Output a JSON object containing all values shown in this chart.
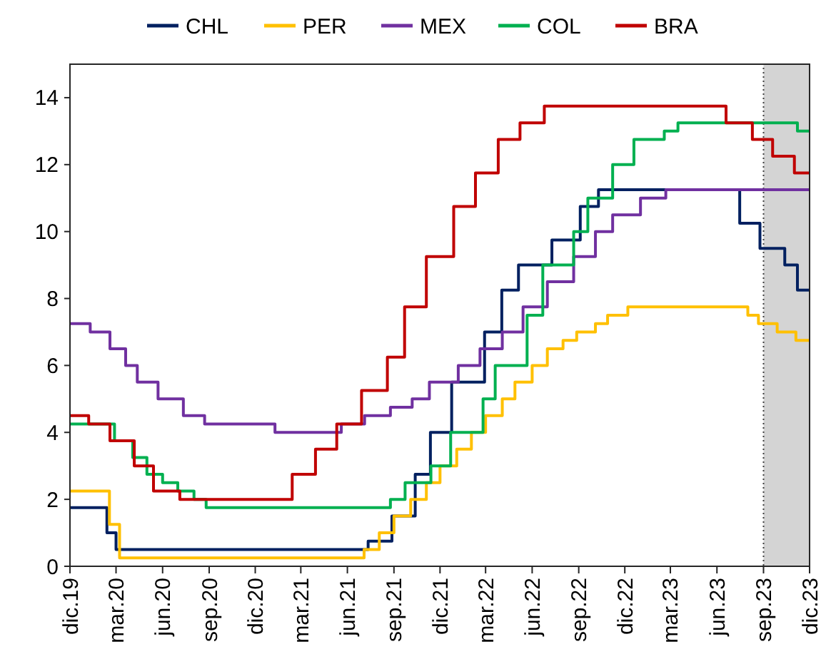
{
  "chart_data": {
    "type": "step",
    "legend": "top",
    "grid": false,
    "line_style": "solid",
    "marker": "none",
    "xlim": [
      "2019-12-01",
      "2023-12-01"
    ],
    "xticks": [
      {
        "value": "2019-12-01",
        "label": "dic.19"
      },
      {
        "value": "2020-03-01",
        "label": "mar.20"
      },
      {
        "value": "2020-06-01",
        "label": "jun.20"
      },
      {
        "value": "2020-09-01",
        "label": "sep.20"
      },
      {
        "value": "2020-12-01",
        "label": "dic.20"
      },
      {
        "value": "2021-03-01",
        "label": "mar.21"
      },
      {
        "value": "2021-06-01",
        "label": "jun.21"
      },
      {
        "value": "2021-09-01",
        "label": "sep.21"
      },
      {
        "value": "2021-12-01",
        "label": "dic.21"
      },
      {
        "value": "2022-03-01",
        "label": "mar.22"
      },
      {
        "value": "2022-06-01",
        "label": "jun.22"
      },
      {
        "value": "2022-09-01",
        "label": "sep.22"
      },
      {
        "value": "2022-12-01",
        "label": "dic.22"
      },
      {
        "value": "2023-03-01",
        "label": "mar.23"
      },
      {
        "value": "2023-06-01",
        "label": "jun.23"
      },
      {
        "value": "2023-09-01",
        "label": "sep.23"
      },
      {
        "value": "2023-12-01",
        "label": "dic.23"
      }
    ],
    "ylim": [
      0,
      15
    ],
    "yticks": [
      0,
      2,
      4,
      6,
      8,
      10,
      12,
      14
    ],
    "bands": [
      {
        "axis": "x",
        "from": "2023-09-01",
        "to": "2023-12-01",
        "color": "#d4d4d4"
      }
    ],
    "series": [
      {
        "name": "CHL",
        "color": "#002060",
        "x": [
          "2019-12-01",
          "2020-02-12",
          "2020-03-01",
          "2021-07-12",
          "2021-08-28",
          "2021-10-13",
          "2021-11-12",
          "2021-12-24",
          "2022-02-27",
          "2022-04-02",
          "2022-05-05",
          "2022-07-10",
          "2022-09-04",
          "2022-10-10",
          "2023-07-16",
          "2023-08-25",
          "2023-10-13",
          "2023-11-07",
          "2023-12-01"
        ],
        "values": [
          1.75,
          1.0,
          0.5,
          0.75,
          1.5,
          2.75,
          4.0,
          5.5,
          7.0,
          8.25,
          9.0,
          9.75,
          10.75,
          11.25,
          10.25,
          9.5,
          9.0,
          8.25,
          8.25
        ]
      },
      {
        "name": "PER",
        "color": "#ffc000",
        "x": [
          "2019-12-01",
          "2020-02-17",
          "2020-03-08",
          "2021-07-04",
          "2021-08-03",
          "2021-09-01",
          "2021-10-04",
          "2021-11-04",
          "2021-12-01",
          "2022-01-03",
          "2022-02-01",
          "2022-03-01",
          "2022-04-03",
          "2022-04-28",
          "2022-06-01",
          "2022-07-01",
          "2022-08-01",
          "2022-08-28",
          "2022-10-04",
          "2022-10-28",
          "2022-12-07",
          "2023-08-01",
          "2023-08-22",
          "2023-09-28",
          "2023-11-04",
          "2023-12-01"
        ],
        "values": [
          2.25,
          1.25,
          0.25,
          0.5,
          1.0,
          1.5,
          2.0,
          2.5,
          3.0,
          3.5,
          4.0,
          4.5,
          5.0,
          5.5,
          6.0,
          6.5,
          6.75,
          7.0,
          7.25,
          7.5,
          7.75,
          7.5,
          7.25,
          7.0,
          6.75,
          6.75
        ]
      },
      {
        "name": "MEX",
        "color": "#7030a0",
        "x": [
          "2019-12-01",
          "2020-01-10",
          "2020-02-18",
          "2020-03-20",
          "2020-04-12",
          "2020-05-23",
          "2020-07-12",
          "2020-08-23",
          "2021-01-09",
          "2021-05-20",
          "2021-07-05",
          "2021-08-25",
          "2021-10-07",
          "2021-11-10",
          "2022-01-06",
          "2022-02-18",
          "2022-04-03",
          "2022-05-14",
          "2022-07-01",
          "2022-08-22",
          "2022-10-04",
          "2022-11-07",
          "2023-01-01",
          "2023-02-20",
          "2023-12-01"
        ],
        "values": [
          7.25,
          7.0,
          6.5,
          6.0,
          5.5,
          5.0,
          4.5,
          4.25,
          4.0,
          4.25,
          4.5,
          4.75,
          5.0,
          5.5,
          6.0,
          6.5,
          7.0,
          7.75,
          8.5,
          9.25,
          10.0,
          10.5,
          11.0,
          11.25,
          11.25
        ]
      },
      {
        "name": "COL",
        "color": "#00b050",
        "x": [
          "2019-12-01",
          "2020-02-27",
          "2020-04-03",
          "2020-05-01",
          "2020-06-01",
          "2020-07-01",
          "2020-08-02",
          "2020-08-26",
          "2021-08-25",
          "2021-09-23",
          "2021-11-13",
          "2021-12-22",
          "2022-02-24",
          "2022-03-20",
          "2022-05-22",
          "2022-06-22",
          "2022-08-22",
          "2022-09-19",
          "2022-11-07",
          "2022-12-19",
          "2023-02-17",
          "2023-03-16",
          "2023-11-07",
          "2023-12-01"
        ],
        "values": [
          4.25,
          3.75,
          3.25,
          2.75,
          2.5,
          2.25,
          2.0,
          1.75,
          2.0,
          2.5,
          3.0,
          4.0,
          5.0,
          6.0,
          7.5,
          9.0,
          10.0,
          11.0,
          12.0,
          12.75,
          13.0,
          13.25,
          13.0,
          13.0
        ]
      },
      {
        "name": "BRA",
        "color": "#c00000",
        "x": [
          "2019-12-01",
          "2020-01-07",
          "2020-02-18",
          "2020-04-06",
          "2020-05-14",
          "2020-07-05",
          "2021-02-12",
          "2021-03-30",
          "2021-05-11",
          "2021-06-29",
          "2021-08-19",
          "2021-09-22",
          "2021-11-04",
          "2021-12-28",
          "2022-02-09",
          "2022-03-26",
          "2022-05-08",
          "2022-06-25",
          "2023-06-19",
          "2023-08-10",
          "2023-09-19",
          "2023-11-01",
          "2023-12-01"
        ],
        "values": [
          4.5,
          4.25,
          3.75,
          3.0,
          2.25,
          2.0,
          2.75,
          3.5,
          4.25,
          5.25,
          6.25,
          7.75,
          9.25,
          10.75,
          11.75,
          12.75,
          13.25,
          13.75,
          13.25,
          12.75,
          12.25,
          11.75,
          11.75
        ]
      }
    ]
  }
}
